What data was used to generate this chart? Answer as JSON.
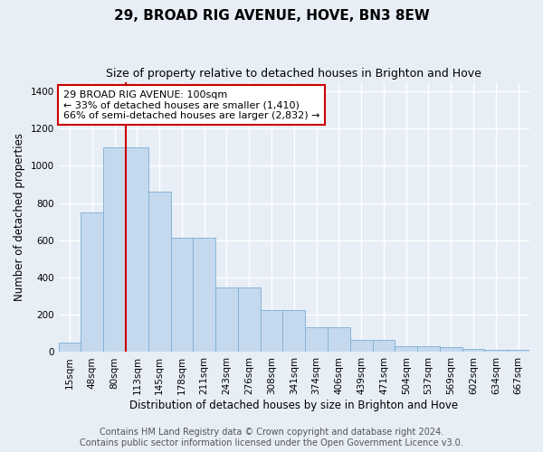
{
  "title": "29, BROAD RIG AVENUE, HOVE, BN3 8EW",
  "subtitle": "Size of property relative to detached houses in Brighton and Hove",
  "xlabel": "Distribution of detached houses by size in Brighton and Hove",
  "ylabel": "Number of detached properties",
  "bar_labels": [
    "15sqm",
    "48sqm",
    "80sqm",
    "113sqm",
    "145sqm",
    "178sqm",
    "211sqm",
    "243sqm",
    "276sqm",
    "308sqm",
    "341sqm",
    "374sqm",
    "406sqm",
    "439sqm",
    "471sqm",
    "504sqm",
    "537sqm",
    "569sqm",
    "602sqm",
    "634sqm",
    "667sqm"
  ],
  "bar_heights": [
    50,
    750,
    1100,
    1100,
    860,
    615,
    615,
    345,
    345,
    225,
    225,
    135,
    135,
    65,
    65,
    30,
    30,
    25,
    15,
    10,
    10
  ],
  "bar_color": "#c5d9ee",
  "bar_edge_color": "#7aadd4",
  "background_color": "#e8eef6",
  "grid_color": "#ffffff",
  "red_line_x": 2.5,
  "annotation_text": "29 BROAD RIG AVENUE: 100sqm\n← 33% of detached houses are smaller (1,410)\n66% of semi-detached houses are larger (2,832) →",
  "annotation_box_color": "#ffffff",
  "annotation_border_color": "#cc0000",
  "ylim": [
    0,
    1450
  ],
  "yticks": [
    0,
    200,
    400,
    600,
    800,
    1000,
    1200,
    1400
  ],
  "footer_line1": "Contains HM Land Registry data © Crown copyright and database right 2024.",
  "footer_line2": "Contains public sector information licensed under the Open Government Licence v3.0.",
  "title_fontsize": 11,
  "subtitle_fontsize": 9,
  "axis_label_fontsize": 8.5,
  "tick_fontsize": 7.5,
  "annotation_fontsize": 8,
  "footer_fontsize": 7
}
